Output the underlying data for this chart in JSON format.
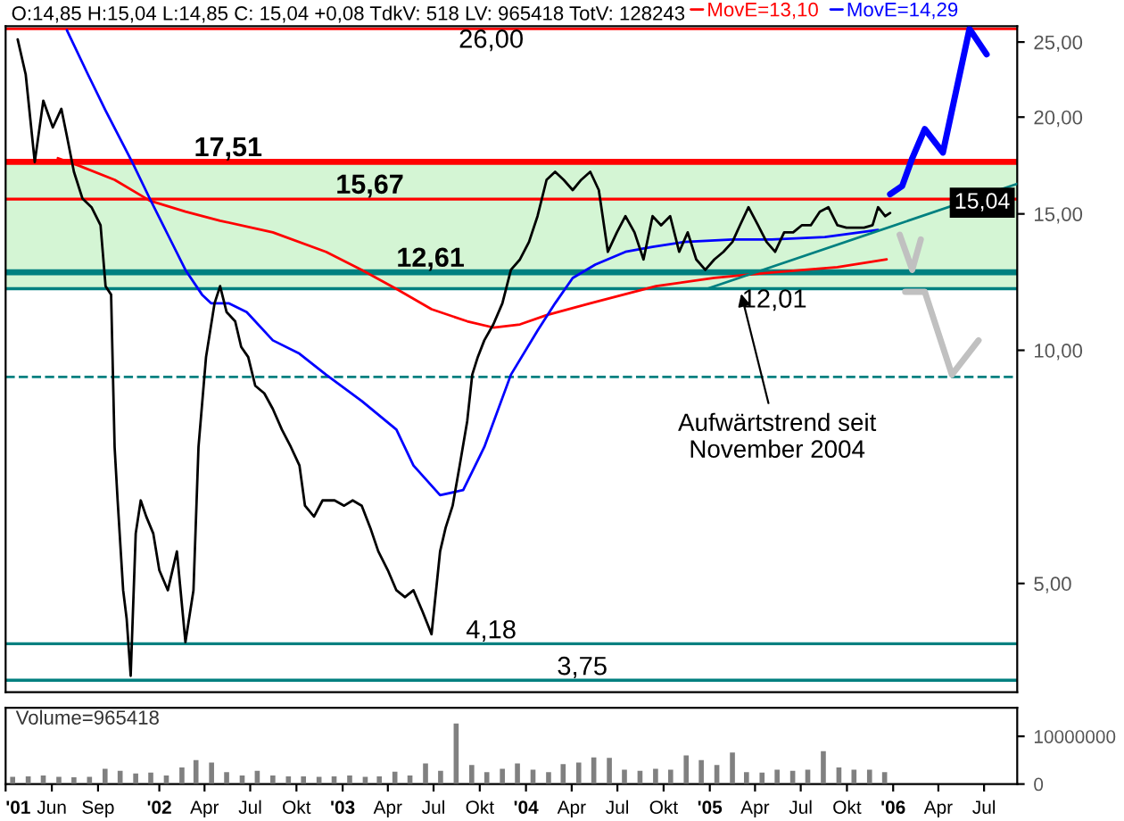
{
  "chart_data": [
    {
      "type": "line",
      "title": "O:14,85 H:15,04 L:14,85 C: 15,04 +0,08 TdkV: 518 LV: 965418 TotV: 128243",
      "log": "y",
      "grid": false,
      "legend": "top",
      "tick_labels": "y",
      "xlim": [
        "2001-03-01",
        "2006-09-05"
      ],
      "ylim": [
        3.62,
        26.2
      ],
      "yticks": [
        {
          "value": 5,
          "label": "5,00"
        },
        {
          "value": 10,
          "label": "10,00"
        },
        {
          "value": 15,
          "label": "15,00"
        },
        {
          "value": 20,
          "label": "20,00"
        },
        {
          "value": 25,
          "label": "25,00"
        }
      ],
      "series": [
        {
          "color": "#000000",
          "x": [
            "2001-03-25",
            "2001-04-10",
            "2001-04-28",
            "2001-05-15",
            "2001-06-03",
            "2001-06-20",
            "2001-07-01",
            "2001-07-15",
            "2001-08-01",
            "2001-08-19",
            "2001-09-06",
            "2001-09-16",
            "2001-09-27",
            "2001-10-04",
            "2001-10-10",
            "2001-10-21",
            "2001-10-28",
            "2001-11-05",
            "2001-11-15",
            "2001-11-25",
            "2001-12-06",
            "2001-12-20",
            "2002-01-01",
            "2002-01-18",
            "2002-02-05",
            "2002-02-22",
            "2002-03-10",
            "2002-03-20",
            "2002-04-04",
            "2002-04-21",
            "2002-05-02",
            "2002-05-15",
            "2002-06-01",
            "2002-06-13",
            "2002-06-27",
            "2002-07-11",
            "2002-07-29",
            "2002-08-15",
            "2002-09-02",
            "2002-09-20",
            "2002-10-07",
            "2002-10-18",
            "2002-11-05",
            "2002-11-22",
            "2002-12-16",
            "2003-01-04",
            "2003-01-21",
            "2003-02-08",
            "2003-02-25",
            "2003-03-13",
            "2003-04-01",
            "2003-04-18",
            "2003-05-05",
            "2003-05-22",
            "2003-06-09",
            "2003-06-27",
            "2003-07-14",
            "2003-07-25",
            "2003-08-08",
            "2003-08-22",
            "2003-09-06",
            "2003-09-16",
            "2003-09-27",
            "2003-10-10",
            "2003-10-28",
            "2003-11-15",
            "2003-12-02",
            "2003-12-20",
            "2004-01-07",
            "2004-01-24",
            "2004-02-11",
            "2004-02-28",
            "2004-03-16",
            "2004-04-03",
            "2004-04-20",
            "2004-05-08",
            "2004-05-25",
            "2004-06-12",
            "2004-06-30",
            "2004-07-17",
            "2004-08-04",
            "2004-08-22",
            "2004-09-09",
            "2004-09-26",
            "2004-10-14",
            "2004-11-01",
            "2004-11-18",
            "2004-12-05",
            "2004-12-23",
            "2005-01-10",
            "2005-01-28",
            "2005-02-15",
            "2005-03-02",
            "2005-03-19",
            "2005-04-07",
            "2005-04-24",
            "2005-05-11",
            "2005-05-29",
            "2005-06-16",
            "2005-07-03",
            "2005-07-21",
            "2005-08-08",
            "2005-08-25",
            "2005-09-12",
            "2005-09-30",
            "2005-10-17",
            "2005-11-04",
            "2005-11-21",
            "2005-12-02",
            "2005-12-16",
            "2005-12-26"
          ],
          "values": [
            25.2,
            22.7,
            17.5,
            21.0,
            19.4,
            20.5,
            18.9,
            17.0,
            15.7,
            15.3,
            14.5,
            12.1,
            11.8,
            7.5,
            6.4,
            4.9,
            4.5,
            3.8,
            5.8,
            6.4,
            6.1,
            5.8,
            5.2,
            4.9,
            5.5,
            4.2,
            4.9,
            7.5,
            9.8,
            11.5,
            12.1,
            11.2,
            10.9,
            10.1,
            9.8,
            9.0,
            8.8,
            8.4,
            7.9,
            7.5,
            7.1,
            6.3,
            6.1,
            6.4,
            6.4,
            6.3,
            6.4,
            6.3,
            5.9,
            5.5,
            5.2,
            4.9,
            4.8,
            4.9,
            4.6,
            4.3,
            5.5,
            5.9,
            6.3,
            7.1,
            8.1,
            9.3,
            9.8,
            10.3,
            10.8,
            11.5,
            12.7,
            13.1,
            13.8,
            14.9,
            16.6,
            17.0,
            16.6,
            16.1,
            16.6,
            17.0,
            16.1,
            13.4,
            14.2,
            14.9,
            14.2,
            13.1,
            14.9,
            14.5,
            14.9,
            13.4,
            14.2,
            13.1,
            12.7,
            13.1,
            13.4,
            13.8,
            14.5,
            15.3,
            14.5,
            13.8,
            13.4,
            14.2,
            14.2,
            14.5,
            14.5,
            15.1,
            15.3,
            14.5,
            14.4,
            14.4,
            14.4,
            14.5,
            15.3,
            14.9,
            15.04
          ]
        },
        {
          "name": "MovE=13,10",
          "color": "#ff0000",
          "x": [
            "2001-06-13",
            "2001-07-26",
            "2001-10-04",
            "2001-12-13",
            "2002-02-22",
            "2002-05-02",
            "2002-08-15",
            "2002-11-29",
            "2003-02-08",
            "2003-04-18",
            "2003-06-27",
            "2003-09-06",
            "2003-10-28",
            "2003-12-20",
            "2004-02-11",
            "2004-05-08",
            "2004-09-16",
            "2005-01-10",
            "2005-05-04",
            "2005-09-12",
            "2005-12-19"
          ],
          "values": [
            17.7,
            17.3,
            16.6,
            15.6,
            15.1,
            14.7,
            14.2,
            13.4,
            12.7,
            12.0,
            11.3,
            10.9,
            10.7,
            10.8,
            11.1,
            11.5,
            12.1,
            12.4,
            12.6,
            12.8,
            13.1
          ]
        },
        {
          "name": "MovE=14,29",
          "color": "#0000ff",
          "x": [
            "2001-07-01",
            "2001-08-12",
            "2001-09-16",
            "2001-11-08",
            "2001-12-13",
            "2002-01-18",
            "2002-02-22",
            "2002-03-27",
            "2002-04-14",
            "2002-05-19",
            "2002-06-24",
            "2002-08-15",
            "2002-10-07",
            "2002-11-29",
            "2003-02-08",
            "2003-04-18",
            "2003-05-22",
            "2003-07-14",
            "2003-08-29",
            "2003-10-10",
            "2003-12-02",
            "2004-01-24",
            "2004-02-28",
            "2004-04-03",
            "2004-05-18",
            "2004-07-17",
            "2004-09-09",
            "2004-11-11",
            "2005-02-15",
            "2005-05-04",
            "2005-08-18",
            "2005-12-02"
          ],
          "values": [
            25.9,
            22.7,
            20.4,
            17.5,
            15.7,
            14.1,
            12.7,
            11.8,
            11.5,
            11.5,
            11.2,
            10.3,
            9.9,
            9.3,
            8.6,
            7.9,
            7.1,
            6.5,
            6.6,
            7.5,
            9.3,
            10.6,
            11.5,
            12.4,
            12.9,
            13.4,
            13.6,
            13.8,
            13.9,
            13.9,
            14.0,
            14.3
          ]
        },
        {
          "color": "#008080",
          "x": [
            "2004-12-27",
            "2006-09-05"
          ],
          "values": [
            12.01,
            16.4
          ]
        },
        {
          "color": "#0000ff",
          "x": [
            "2005-12-26",
            "2006-01-19",
            "2006-02-08",
            "2006-03-05",
            "2006-04-10",
            "2006-06-02",
            "2006-07-06"
          ],
          "values": [
            15.9,
            16.3,
            17.7,
            19.3,
            18.0,
            26.0,
            24.1
          ]
        },
        {
          "color": "#c0c0c0",
          "x": [
            "2006-01-14",
            "2006-02-08",
            "2006-02-25"
          ],
          "values": [
            14.1,
            12.7,
            13.9
          ]
        },
        {
          "color": "#c0c0c0",
          "x": [
            "2006-01-25",
            "2006-03-05",
            "2006-04-28",
            "2006-06-20"
          ],
          "values": [
            11.9,
            11.9,
            9.3,
            10.3
          ]
        }
      ],
      "ref_lines": [
        {
          "axis": "y",
          "value": 26.0,
          "label": "26,00",
          "color": "#ff0000"
        },
        {
          "axis": "y",
          "value": 17.51,
          "label": "17,51",
          "color": "#ff0000"
        },
        {
          "axis": "y",
          "value": 15.67,
          "label": "15,67",
          "color": "#ff0000"
        },
        {
          "axis": "y",
          "value": 12.61,
          "label": "12,61",
          "color": "#008080"
        },
        {
          "axis": "y",
          "value": 12.01,
          "label": "12,01",
          "color": "#008080"
        },
        {
          "axis": "y",
          "value": 9.24,
          "color": "#008080",
          "line_style": "dashed"
        },
        {
          "axis": "y",
          "value": 4.18,
          "label": "4,18",
          "color": "#008080"
        },
        {
          "axis": "y",
          "value": 3.75,
          "label": "3,75",
          "color": "#008080"
        }
      ],
      "bands": [
        {
          "axis": "y",
          "from": 12.01,
          "to": 17.51,
          "color": "#d4f5d4"
        }
      ],
      "annotations": [
        "15,04",
        {
          "text": "Aufwärtstrend seit\nNovember 2004",
          "x": "2005-03-02",
          "y": 12.0
        }
      ]
    },
    {
      "type": "bar",
      "title": "Volume=965418",
      "grid": false,
      "legend": false,
      "xlim": [
        "2001-03-01",
        "2006-09-05"
      ],
      "ylim": [
        0,
        16000000
      ],
      "yticks": [
        0,
        10000000
      ],
      "xticks": [
        {
          "value": "2001-03-01",
          "label": "'01"
        },
        {
          "value": "2001-06-01",
          "label": "Jun"
        },
        {
          "value": "2001-09-01",
          "label": "Sep"
        },
        {
          "value": "2002-01-01",
          "label": "'02"
        },
        {
          "value": "2002-04-01",
          "label": "Apr"
        },
        {
          "value": "2002-07-01",
          "label": "Jul"
        },
        {
          "value": "2002-10-01",
          "label": "Okt"
        },
        {
          "value": "2003-01-01",
          "label": "'03"
        },
        {
          "value": "2003-04-01",
          "label": "Apr"
        },
        {
          "value": "2003-07-01",
          "label": "Jul"
        },
        {
          "value": "2003-10-01",
          "label": "Okt"
        },
        {
          "value": "2004-01-01",
          "label": "'04"
        },
        {
          "value": "2004-04-01",
          "label": "Apr"
        },
        {
          "value": "2004-07-01",
          "label": "Jul"
        },
        {
          "value": "2004-10-01",
          "label": "Okt"
        },
        {
          "value": "2005-01-01",
          "label": "'05"
        },
        {
          "value": "2005-04-01",
          "label": "Apr"
        },
        {
          "value": "2005-07-01",
          "label": "Jul"
        },
        {
          "value": "2005-10-01",
          "label": "Okt"
        },
        {
          "value": "2006-01-01",
          "label": "'06"
        },
        {
          "value": "2006-04-01",
          "label": "Apr"
        },
        {
          "value": "2006-07-01",
          "label": "Jul"
        }
      ],
      "x": [
        "2001-03-15",
        "2001-04-15",
        "2001-05-15",
        "2001-06-15",
        "2001-07-15",
        "2001-08-15",
        "2001-09-15",
        "2001-10-15",
        "2001-11-15",
        "2001-12-15",
        "2002-01-15",
        "2002-02-15",
        "2002-03-15",
        "2002-04-15",
        "2002-05-15",
        "2002-06-15",
        "2002-07-15",
        "2002-08-15",
        "2002-09-15",
        "2002-10-15",
        "2002-11-15",
        "2002-12-15",
        "2003-01-15",
        "2003-02-15",
        "2003-03-15",
        "2003-04-15",
        "2003-05-15",
        "2003-06-15",
        "2003-07-15",
        "2003-08-15",
        "2003-09-15",
        "2003-10-15",
        "2003-11-15",
        "2003-12-15",
        "2004-01-15",
        "2004-02-15",
        "2004-03-15",
        "2004-04-15",
        "2004-05-15",
        "2004-06-15",
        "2004-07-15",
        "2004-08-15",
        "2004-09-15",
        "2004-10-15",
        "2004-11-15",
        "2004-12-15",
        "2005-01-15",
        "2005-02-15",
        "2005-03-15",
        "2005-04-15",
        "2005-05-15",
        "2005-06-15",
        "2005-07-15",
        "2005-08-15",
        "2005-09-15",
        "2005-10-15",
        "2005-11-15",
        "2005-12-15"
      ],
      "series": [
        {
          "color": "#808080",
          "values": [
            1500000,
            1600000,
            1800000,
            1500000,
            1400000,
            1500000,
            3200000,
            2800000,
            2200000,
            2400000,
            1800000,
            3500000,
            5000000,
            4500000,
            2500000,
            1800000,
            2800000,
            1800000,
            1600000,
            1600000,
            1500000,
            1600000,
            1800000,
            1500000,
            1600000,
            2600000,
            1800000,
            4300000,
            2800000,
            12700000,
            4000000,
            2500000,
            3200000,
            4300000,
            3000000,
            2500000,
            4200000,
            4500000,
            5600000,
            5500000,
            3000000,
            2800000,
            3200000,
            3000000,
            6000000,
            5000000,
            4000000,
            6600000,
            2500000,
            2400000,
            3000000,
            2800000,
            3000000,
            6900000,
            3500000,
            3000000,
            3000000,
            2500000
          ]
        }
      ]
    }
  ]
}
